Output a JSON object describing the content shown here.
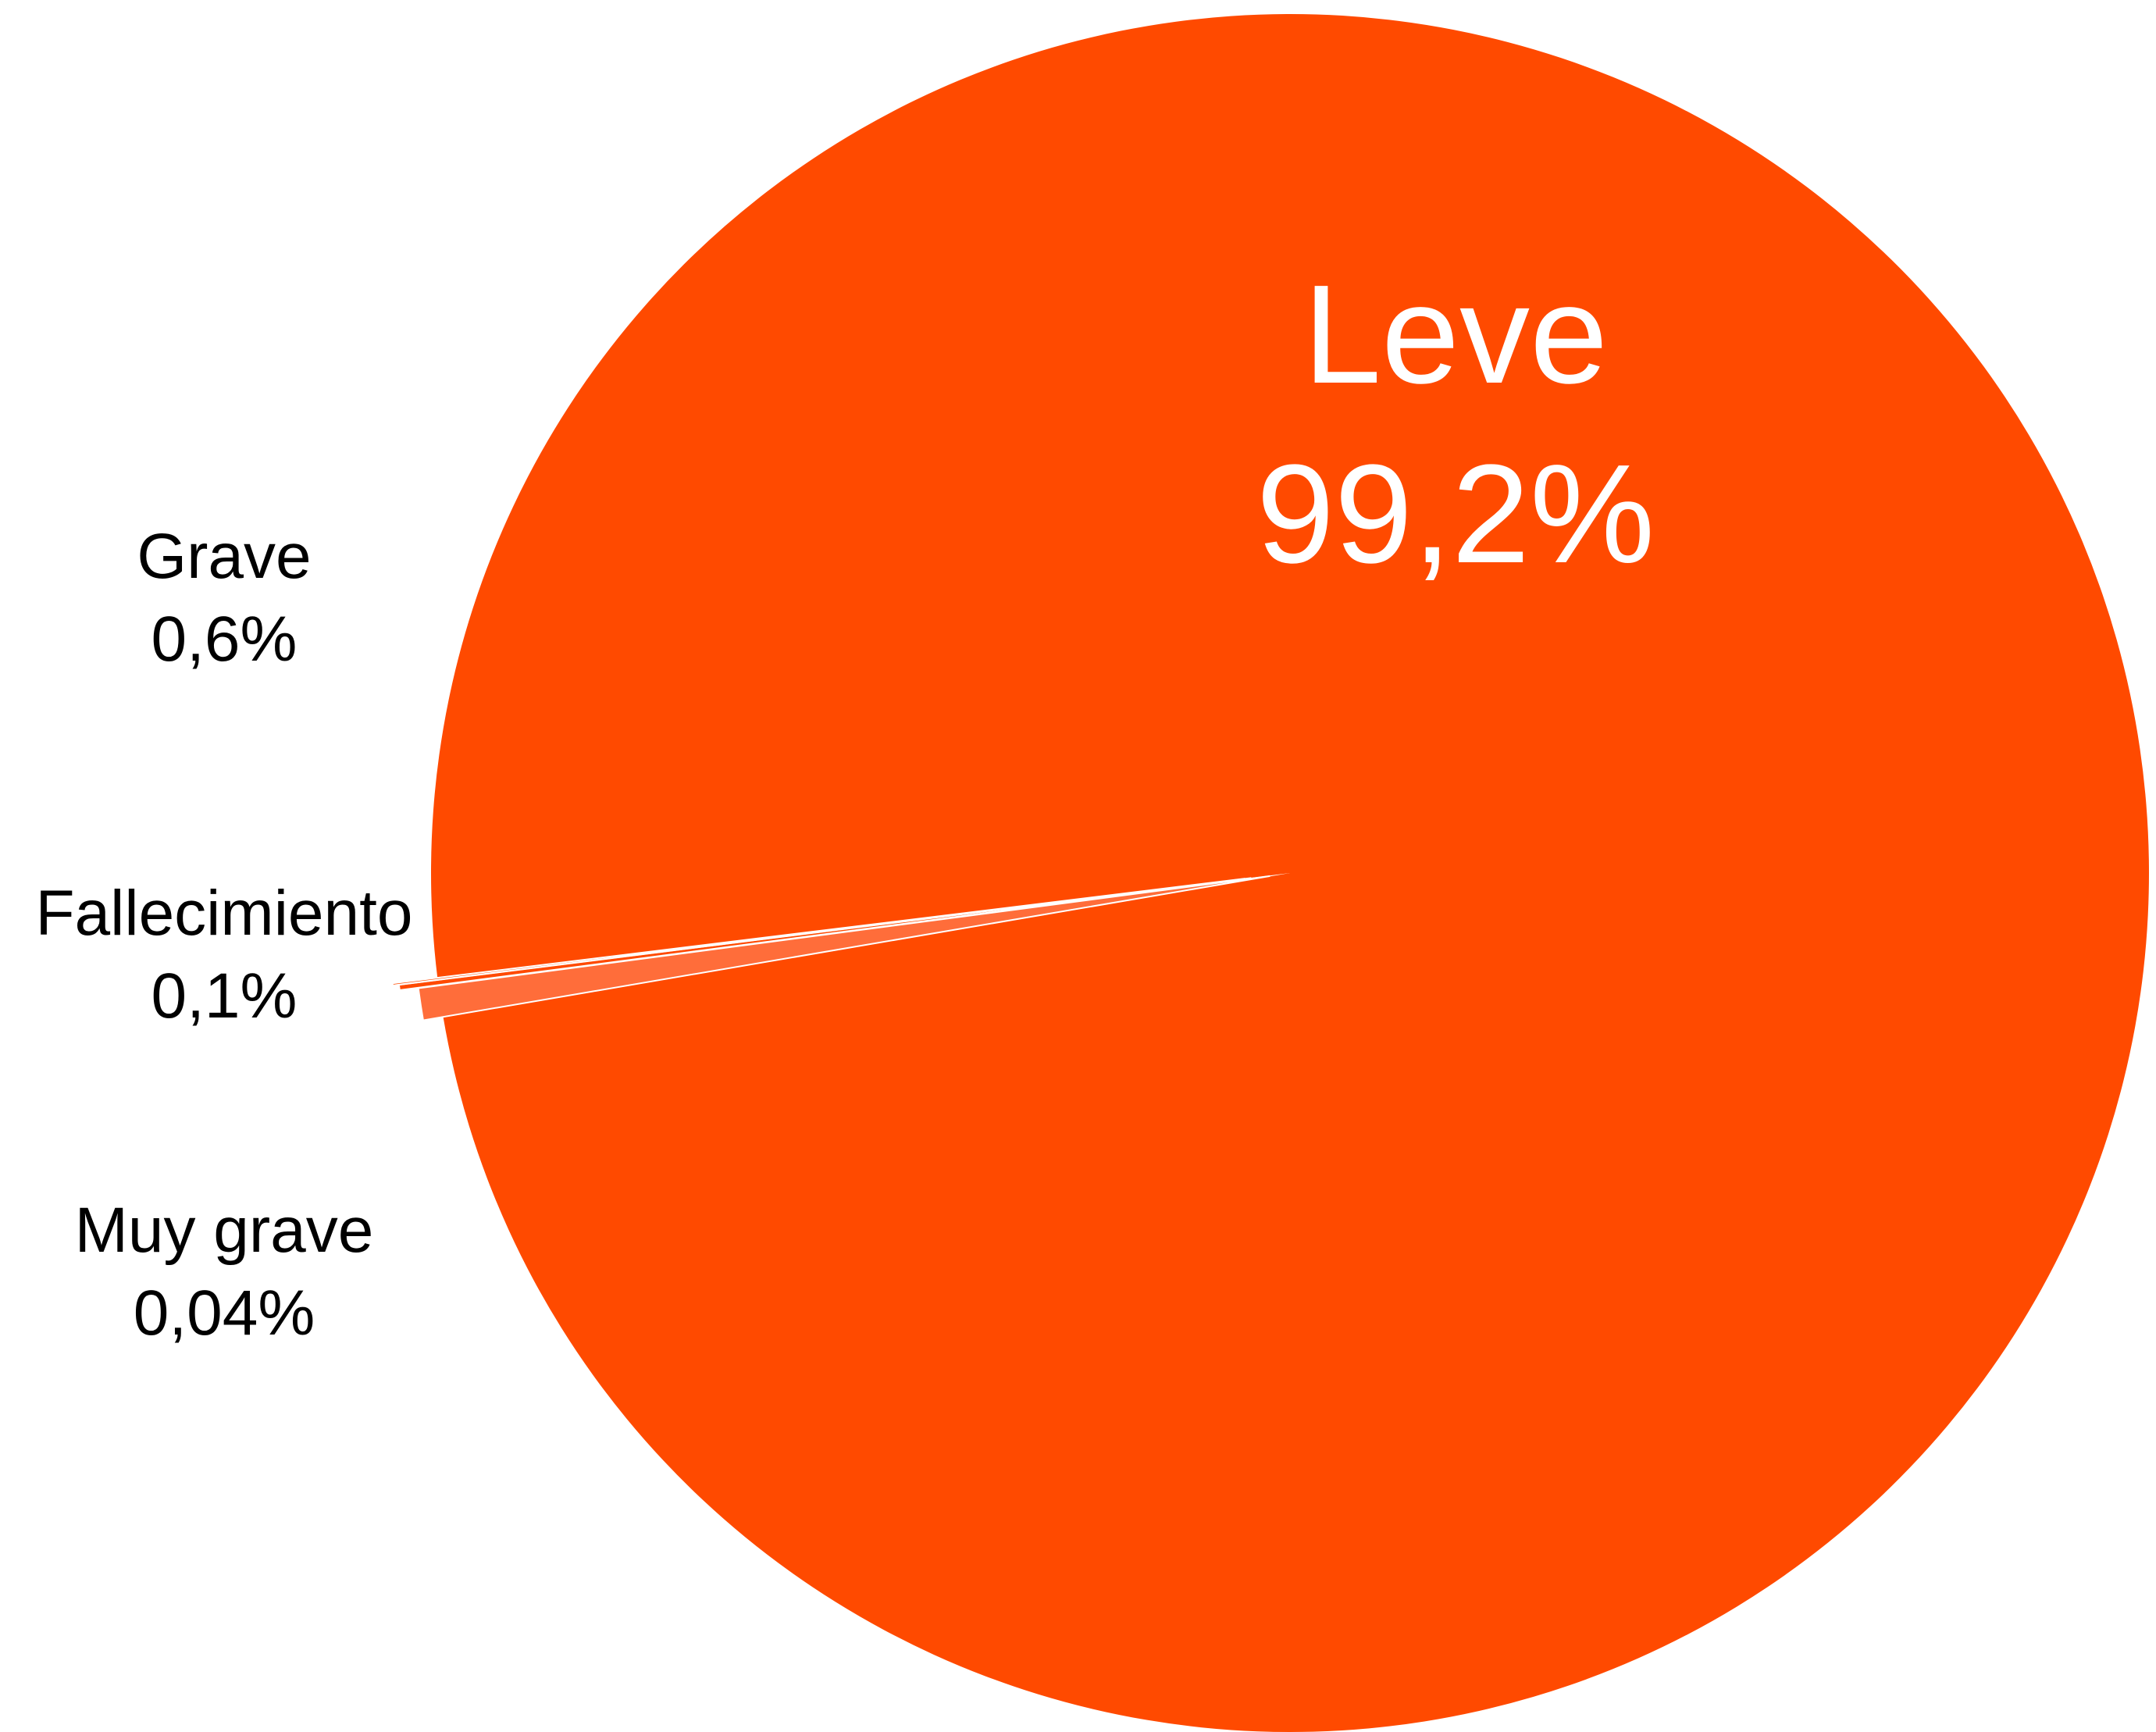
{
  "chart_data": {
    "type": "pie",
    "title": "",
    "slices": [
      {
        "label": "Leve",
        "value_label": "99,2%",
        "value": 99.2,
        "color": "#FF4A00",
        "label_color": "#FFFFFF"
      },
      {
        "label": "Grave",
        "value_label": "0,6%",
        "value": 0.6,
        "color": "#FF6D3A",
        "label_color": "#000000"
      },
      {
        "label": "Fallecimiento",
        "value_label": "0,1%",
        "value": 0.1,
        "color": "#FF4A00",
        "label_color": "#000000"
      },
      {
        "label": "Muy grave",
        "value_label": "0,04%",
        "value": 0.04,
        "color": "#FF4A00",
        "label_color": "#000000"
      }
    ],
    "background": "#FFFFFF"
  }
}
